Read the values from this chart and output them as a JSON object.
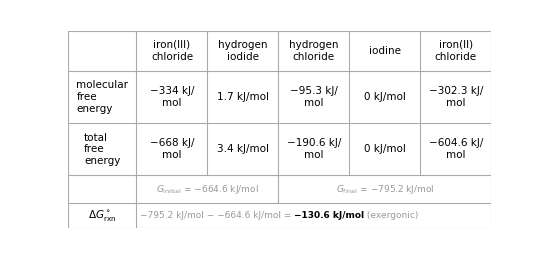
{
  "col_headers": [
    "iron(III)\nchloride",
    "hydrogen\niodide",
    "hydrogen\nchloride",
    "iodine",
    "iron(II)\nchloride"
  ],
  "row1_values": [
    "−334 kJ/\nmol",
    "1.7 kJ/mol",
    "−95.3 kJ/\nmol",
    "0 kJ/mol",
    "−302.3 kJ/\nmol"
  ],
  "row2_values": [
    "−668 kJ/\nmol",
    "3.4 kJ/mol",
    "−190.6 kJ/\nmol",
    "0 kJ/mol",
    "−604.6 kJ/\nmol"
  ],
  "bg_color": "#ffffff",
  "grid_color": "#aaaaaa",
  "text_color": "#000000",
  "gray_text": "#999999"
}
